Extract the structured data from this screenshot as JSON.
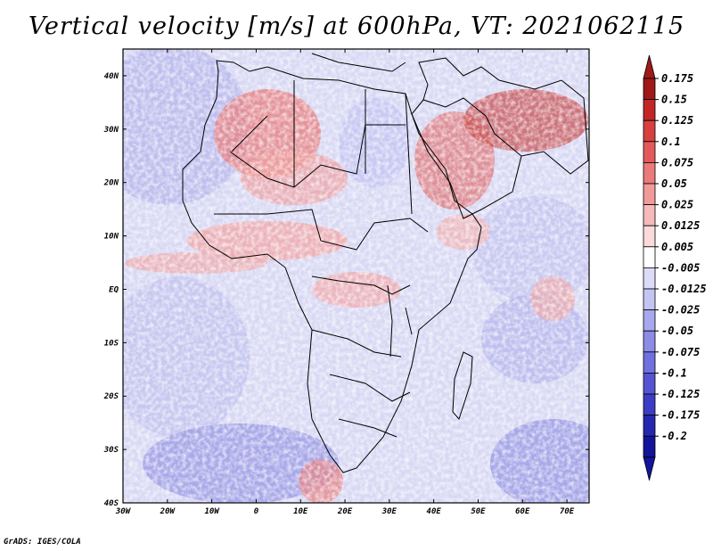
{
  "title": "Vertical velocity [m/s] at 600hPa, VT: 2021062115",
  "credit": "GrADS: IGES/COLA",
  "map": {
    "lat_labels": [
      "40N",
      "30N",
      "20N",
      "10N",
      "EQ",
      "10S",
      "20S",
      "30S",
      "40S"
    ],
    "lat_values": [
      40,
      30,
      20,
      10,
      0,
      -10,
      -20,
      -30,
      -40
    ],
    "lon_labels": [
      "30W",
      "20W",
      "10W",
      "0",
      "10E",
      "20E",
      "30E",
      "40E",
      "50E",
      "60E",
      "70E"
    ],
    "lon_values": [
      -30,
      -20,
      -10,
      0,
      10,
      20,
      30,
      40,
      50,
      60,
      70
    ],
    "lon_range": [
      -30,
      75
    ],
    "lat_range": [
      -40,
      45
    ]
  },
  "colorbar": {
    "labels": [
      "0.175",
      "0.15",
      "0.125",
      "0.1",
      "0.075",
      "0.05",
      "0.025",
      "0.0125",
      "0.005",
      "-0.005",
      "-0.0125",
      "-0.025",
      "-0.05",
      "-0.075",
      "-0.1",
      "-0.125",
      "-0.175",
      "-0.2"
    ],
    "colors": [
      "#a01818",
      "#c42626",
      "#d84040",
      "#e45a5a",
      "#ec7a7a",
      "#f29a9a",
      "#f6baba",
      "#fadada",
      "#ffffff",
      "#dcdcf8",
      "#c4c4f4",
      "#a8a8ee",
      "#8c8ce6",
      "#7070de",
      "#5454d2",
      "#3c3cc4",
      "#2626b0",
      "#14149a"
    ]
  }
}
